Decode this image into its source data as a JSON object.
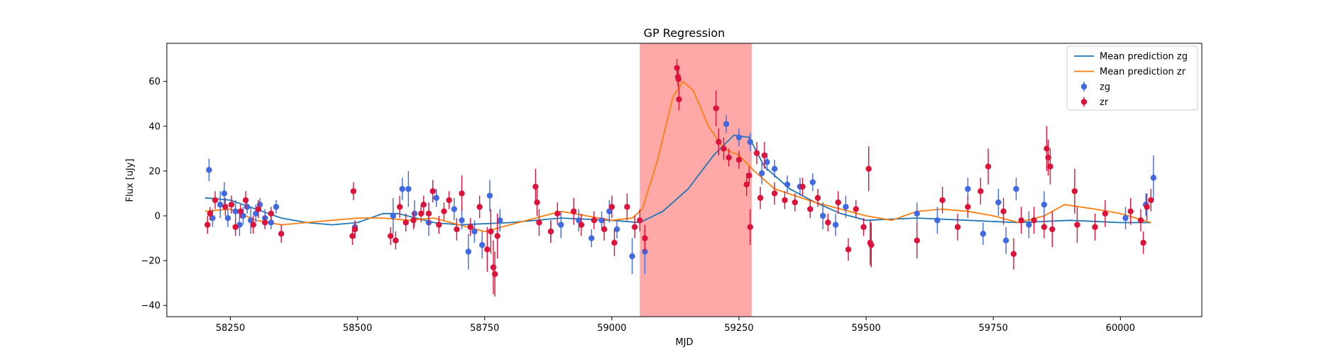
{
  "chart_data": {
    "type": "scatter",
    "title": "GP Regression",
    "xlabel": "MJD",
    "ylabel": "Flux [uJy]",
    "xlim": [
      58125,
      60160
    ],
    "ylim": [
      -45,
      77
    ],
    "xticks": [
      58250,
      58500,
      58750,
      59000,
      59250,
      59500,
      59750,
      60000
    ],
    "yticks": [
      -40,
      -20,
      0,
      20,
      40,
      60
    ],
    "grid": false,
    "legend_position": "top-right",
    "shaded_region": {
      "x": [
        59055,
        59275
      ],
      "color": "#ff9999"
    },
    "lines": [
      {
        "name": "Mean prediction zg",
        "color": "#1f77b4",
        "points": [
          [
            58200,
            8
          ],
          [
            58250,
            7
          ],
          [
            58300,
            3
          ],
          [
            58350,
            -1
          ],
          [
            58400,
            -3
          ],
          [
            58450,
            -4
          ],
          [
            58500,
            -3
          ],
          [
            58550,
            1
          ],
          [
            58580,
            1
          ],
          [
            58650,
            -3
          ],
          [
            58700,
            -4
          ],
          [
            58800,
            -3
          ],
          [
            58900,
            -1
          ],
          [
            59000,
            -2
          ],
          [
            59055,
            -3
          ],
          [
            59100,
            2
          ],
          [
            59150,
            12
          ],
          [
            59200,
            27
          ],
          [
            59240,
            36
          ],
          [
            59270,
            35
          ],
          [
            59300,
            22
          ],
          [
            59350,
            12
          ],
          [
            59400,
            6
          ],
          [
            59450,
            1
          ],
          [
            59500,
            -2
          ],
          [
            59600,
            -1
          ],
          [
            59700,
            -2
          ],
          [
            59800,
            -3
          ],
          [
            59900,
            -2
          ],
          [
            60000,
            -3
          ],
          [
            60060,
            -3
          ]
        ]
      },
      {
        "name": "Mean prediction zr",
        "color": "#ff7f0e",
        "points": [
          [
            58200,
            2
          ],
          [
            58250,
            3
          ],
          [
            58300,
            -2
          ],
          [
            58350,
            -4
          ],
          [
            58400,
            -3
          ],
          [
            58450,
            -2
          ],
          [
            58500,
            -1
          ],
          [
            58550,
            -1
          ],
          [
            58600,
            -2
          ],
          [
            58650,
            -1
          ],
          [
            58700,
            -4
          ],
          [
            58750,
            -7
          ],
          [
            58800,
            -4
          ],
          [
            58850,
            -1
          ],
          [
            58900,
            2
          ],
          [
            58950,
            0
          ],
          [
            59000,
            -2
          ],
          [
            59040,
            -1
          ],
          [
            59060,
            3
          ],
          [
            59090,
            25
          ],
          [
            59120,
            53
          ],
          [
            59140,
            60
          ],
          [
            59160,
            56
          ],
          [
            59190,
            40
          ],
          [
            59220,
            30
          ],
          [
            59250,
            27
          ],
          [
            59280,
            20
          ],
          [
            59320,
            12
          ],
          [
            59360,
            9
          ],
          [
            59400,
            6
          ],
          [
            59450,
            3
          ],
          [
            59500,
            0
          ],
          [
            59550,
            -2
          ],
          [
            59600,
            2
          ],
          [
            59650,
            3
          ],
          [
            59700,
            2
          ],
          [
            59750,
            0
          ],
          [
            59800,
            -3
          ],
          [
            59850,
            0
          ],
          [
            59890,
            5
          ],
          [
            59950,
            3
          ],
          [
            60000,
            1
          ],
          [
            60060,
            -3
          ]
        ]
      }
    ],
    "series": [
      {
        "name": "zg",
        "color": "#4169e1",
        "points": [
          [
            58208,
            20.5,
            5
          ],
          [
            58215,
            -1,
            4
          ],
          [
            58230,
            5,
            6
          ],
          [
            58238,
            10,
            5
          ],
          [
            58245,
            -1,
            4
          ],
          [
            58260,
            2,
            5
          ],
          [
            58268,
            -4,
            5
          ],
          [
            58275,
            0,
            4
          ],
          [
            58283,
            4,
            3
          ],
          [
            58290,
            -2,
            6
          ],
          [
            58300,
            1,
            4
          ],
          [
            58308,
            5,
            3
          ],
          [
            58318,
            -1,
            4
          ],
          [
            58330,
            -3,
            3
          ],
          [
            58340,
            4,
            3
          ],
          [
            58495,
            -5,
            3
          ],
          [
            58570,
            0,
            8
          ],
          [
            58588,
            12,
            5
          ],
          [
            58600,
            12,
            8
          ],
          [
            58612,
            1,
            6
          ],
          [
            58640,
            -3,
            6
          ],
          [
            58655,
            8,
            4
          ],
          [
            58690,
            3,
            5
          ],
          [
            58705,
            -2,
            4
          ],
          [
            58718,
            -16,
            8
          ],
          [
            58730,
            -7,
            5
          ],
          [
            58745,
            -13,
            6
          ],
          [
            58760,
            9,
            7
          ],
          [
            58780,
            -2,
            5
          ],
          [
            58880,
            -7,
            5
          ],
          [
            58900,
            -4,
            6
          ],
          [
            58935,
            -2,
            5
          ],
          [
            58960,
            -10,
            4
          ],
          [
            58980,
            -2,
            4
          ],
          [
            58995,
            2,
            5
          ],
          [
            59010,
            -6,
            4
          ],
          [
            59040,
            -18,
            8
          ],
          [
            59065,
            -16,
            10
          ],
          [
            59225,
            41,
            4
          ],
          [
            59250,
            35,
            4
          ],
          [
            59272,
            33,
            4
          ],
          [
            59295,
            19,
            5
          ],
          [
            59305,
            24,
            4
          ],
          [
            59320,
            21,
            4
          ],
          [
            59345,
            14,
            4
          ],
          [
            59370,
            13,
            4
          ],
          [
            59395,
            15,
            4
          ],
          [
            59415,
            0,
            6
          ],
          [
            59440,
            -4,
            5
          ],
          [
            59460,
            4,
            5
          ],
          [
            59600,
            1,
            5
          ],
          [
            59640,
            -2,
            6
          ],
          [
            59700,
            12,
            5
          ],
          [
            59730,
            -8,
            5
          ],
          [
            59760,
            6,
            6
          ],
          [
            59775,
            -11,
            6
          ],
          [
            59795,
            12,
            5
          ],
          [
            59820,
            -4,
            6
          ],
          [
            59850,
            5,
            6
          ],
          [
            60010,
            -1,
            5
          ],
          [
            60050,
            5,
            5
          ],
          [
            60065,
            17,
            10
          ]
        ]
      },
      {
        "name": "zr",
        "color": "#dc143c",
        "points": [
          [
            58205,
            -4,
            4
          ],
          [
            58210,
            1,
            3
          ],
          [
            58220,
            7,
            4
          ],
          [
            58240,
            4,
            4
          ],
          [
            58252,
            5,
            4
          ],
          [
            58260,
            -5,
            4
          ],
          [
            58270,
            2,
            3
          ],
          [
            58280,
            7,
            4
          ],
          [
            58295,
            -4,
            4
          ],
          [
            58305,
            3,
            4
          ],
          [
            58318,
            -3,
            3
          ],
          [
            58330,
            1,
            3
          ],
          [
            58350,
            -8,
            4
          ],
          [
            58490,
            -9,
            4
          ],
          [
            58492,
            11,
            4
          ],
          [
            58495,
            -6,
            4
          ],
          [
            58565,
            -9,
            4
          ],
          [
            58575,
            -11,
            4
          ],
          [
            58583,
            4,
            5
          ],
          [
            58595,
            -3,
            4
          ],
          [
            58610,
            -2,
            4
          ],
          [
            58625,
            1,
            4
          ],
          [
            58630,
            5,
            4
          ],
          [
            58640,
            1,
            5
          ],
          [
            58648,
            11,
            5
          ],
          [
            58660,
            -4,
            4
          ],
          [
            58670,
            2,
            4
          ],
          [
            58680,
            7,
            4
          ],
          [
            58695,
            -6,
            5
          ],
          [
            58705,
            10,
            8
          ],
          [
            58722,
            -5,
            4
          ],
          [
            58740,
            4,
            5
          ],
          [
            58755,
            -15,
            10
          ],
          [
            58762,
            -7,
            10
          ],
          [
            58767,
            -23,
            12
          ],
          [
            58770,
            -26,
            10
          ],
          [
            58775,
            -9,
            10
          ],
          [
            58850,
            13,
            8
          ],
          [
            58853,
            6,
            6
          ],
          [
            58857,
            -3,
            6
          ],
          [
            58880,
            -7,
            5
          ],
          [
            58893,
            1,
            5
          ],
          [
            58925,
            2,
            6
          ],
          [
            58940,
            -4,
            5
          ],
          [
            58965,
            -2,
            4
          ],
          [
            58985,
            -6,
            5
          ],
          [
            59000,
            4,
            5
          ],
          [
            59005,
            -12,
            6
          ],
          [
            59030,
            4,
            6
          ],
          [
            59045,
            -5,
            5
          ],
          [
            59055,
            -2,
            5
          ],
          [
            59065,
            -10,
            6
          ],
          [
            59128,
            66,
            4
          ],
          [
            59130,
            62,
            4
          ],
          [
            59131,
            61,
            4
          ],
          [
            59132,
            52,
            5
          ],
          [
            59205,
            48,
            8
          ],
          [
            59210,
            33,
            6
          ],
          [
            59220,
            30,
            5
          ],
          [
            59230,
            26,
            4
          ],
          [
            59250,
            25,
            4
          ],
          [
            59265,
            14,
            5
          ],
          [
            59270,
            18,
            4
          ],
          [
            59272,
            -5,
            8
          ],
          [
            59285,
            28,
            5
          ],
          [
            59292,
            8,
            5
          ],
          [
            59300,
            27,
            6
          ],
          [
            59320,
            10,
            5
          ],
          [
            59340,
            7,
            4
          ],
          [
            59360,
            6,
            4
          ],
          [
            59375,
            13,
            4
          ],
          [
            59390,
            3,
            4
          ],
          [
            59405,
            8,
            4
          ],
          [
            59425,
            -3,
            4
          ],
          [
            59445,
            6,
            5
          ],
          [
            59465,
            -15,
            5
          ],
          [
            59480,
            3,
            4
          ],
          [
            59495,
            -5,
            4
          ],
          [
            59505,
            21,
            10
          ],
          [
            59508,
            -12,
            10
          ],
          [
            59510,
            -13,
            10
          ],
          [
            59600,
            -11,
            8
          ],
          [
            59650,
            7,
            6
          ],
          [
            59680,
            -5,
            6
          ],
          [
            59700,
            4,
            5
          ],
          [
            59725,
            11,
            6
          ],
          [
            59740,
            22,
            8
          ],
          [
            59770,
            2,
            6
          ],
          [
            59790,
            -17,
            7
          ],
          [
            59805,
            -2,
            6
          ],
          [
            59830,
            -2,
            6
          ],
          [
            59850,
            -5,
            5
          ],
          [
            59855,
            30,
            10
          ],
          [
            59858,
            26,
            8
          ],
          [
            59862,
            22,
            8
          ],
          [
            59866,
            -6,
            8
          ],
          [
            59910,
            11,
            10
          ],
          [
            59915,
            -4,
            8
          ],
          [
            59950,
            -5,
            6
          ],
          [
            59970,
            1,
            6
          ],
          [
            60020,
            2,
            6
          ],
          [
            60040,
            -2,
            5
          ],
          [
            60045,
            -12,
            5
          ],
          [
            60052,
            4,
            6
          ],
          [
            60060,
            7,
            5
          ]
        ]
      }
    ]
  }
}
